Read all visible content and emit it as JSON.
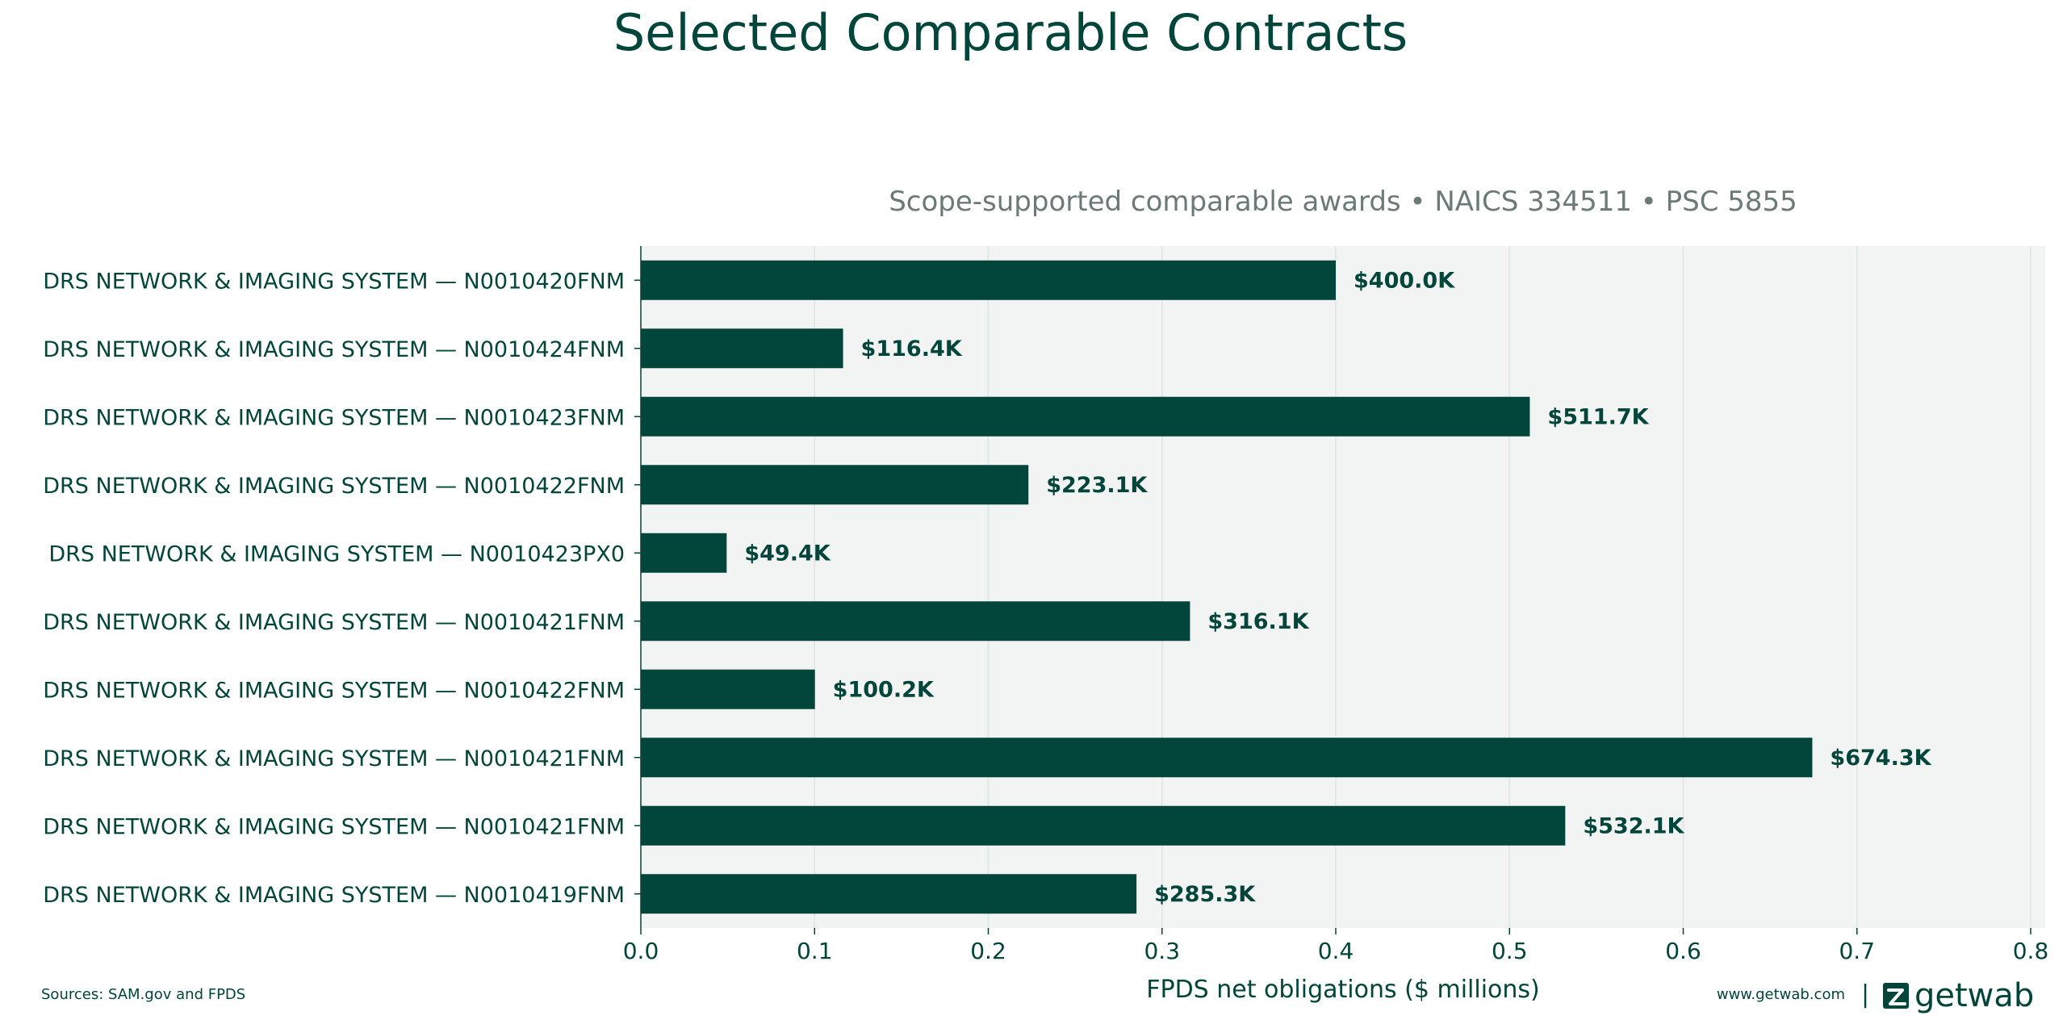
{
  "chart_data": {
    "type": "bar",
    "orientation": "horizontal",
    "title": "Selected Comparable Contracts",
    "subtitle": "Scope-supported comparable awards • NAICS 334511 • PSC 5855",
    "xlabel": "FPDS net obligations ($ millions)",
    "ylabel": "",
    "xlim": [
      0.0,
      0.8
    ],
    "xticks": [
      "0.0",
      "0.1",
      "0.2",
      "0.3",
      "0.4",
      "0.5",
      "0.6",
      "0.7",
      "0.8"
    ],
    "grid": "vertical",
    "categories": [
      "DRS NETWORK & IMAGING SYSTEM — N0010420FNM",
      "DRS NETWORK & IMAGING SYSTEM — N0010424FNM",
      "DRS NETWORK & IMAGING SYSTEM — N0010423FNM",
      "DRS NETWORK & IMAGING SYSTEM — N0010422FNM",
      "DRS NETWORK & IMAGING SYSTEM — N0010423PX0",
      "DRS NETWORK & IMAGING SYSTEM — N0010421FNM",
      "DRS NETWORK & IMAGING SYSTEM — N0010422FNM",
      "DRS NETWORK & IMAGING SYSTEM — N0010421FNM",
      "DRS NETWORK & IMAGING SYSTEM — N0010421FNM",
      "DRS NETWORK & IMAGING SYSTEM — N0010419FNM"
    ],
    "values": [
      0.4,
      0.1164,
      0.5117,
      0.2231,
      0.0494,
      0.3161,
      0.1002,
      0.6743,
      0.5321,
      0.2853
    ],
    "value_labels": [
      "$400.0K",
      "$116.4K",
      "$511.7K",
      "$223.1K",
      "$49.4K",
      "$316.1K",
      "$100.2K",
      "$674.3K",
      "$532.1K",
      "$285.3K"
    ]
  },
  "footer": {
    "source": "Sources: SAM.gov and FPDS",
    "website": "www.getwab.com",
    "separator": "|",
    "logo_text": "getwab"
  },
  "colors": {
    "bar": "#02453a",
    "title": "#02453a",
    "subtitle": "#6b7a76",
    "text": "#02453a",
    "plot_bg": "#f2f4f3",
    "grid": "#dde5e2"
  }
}
